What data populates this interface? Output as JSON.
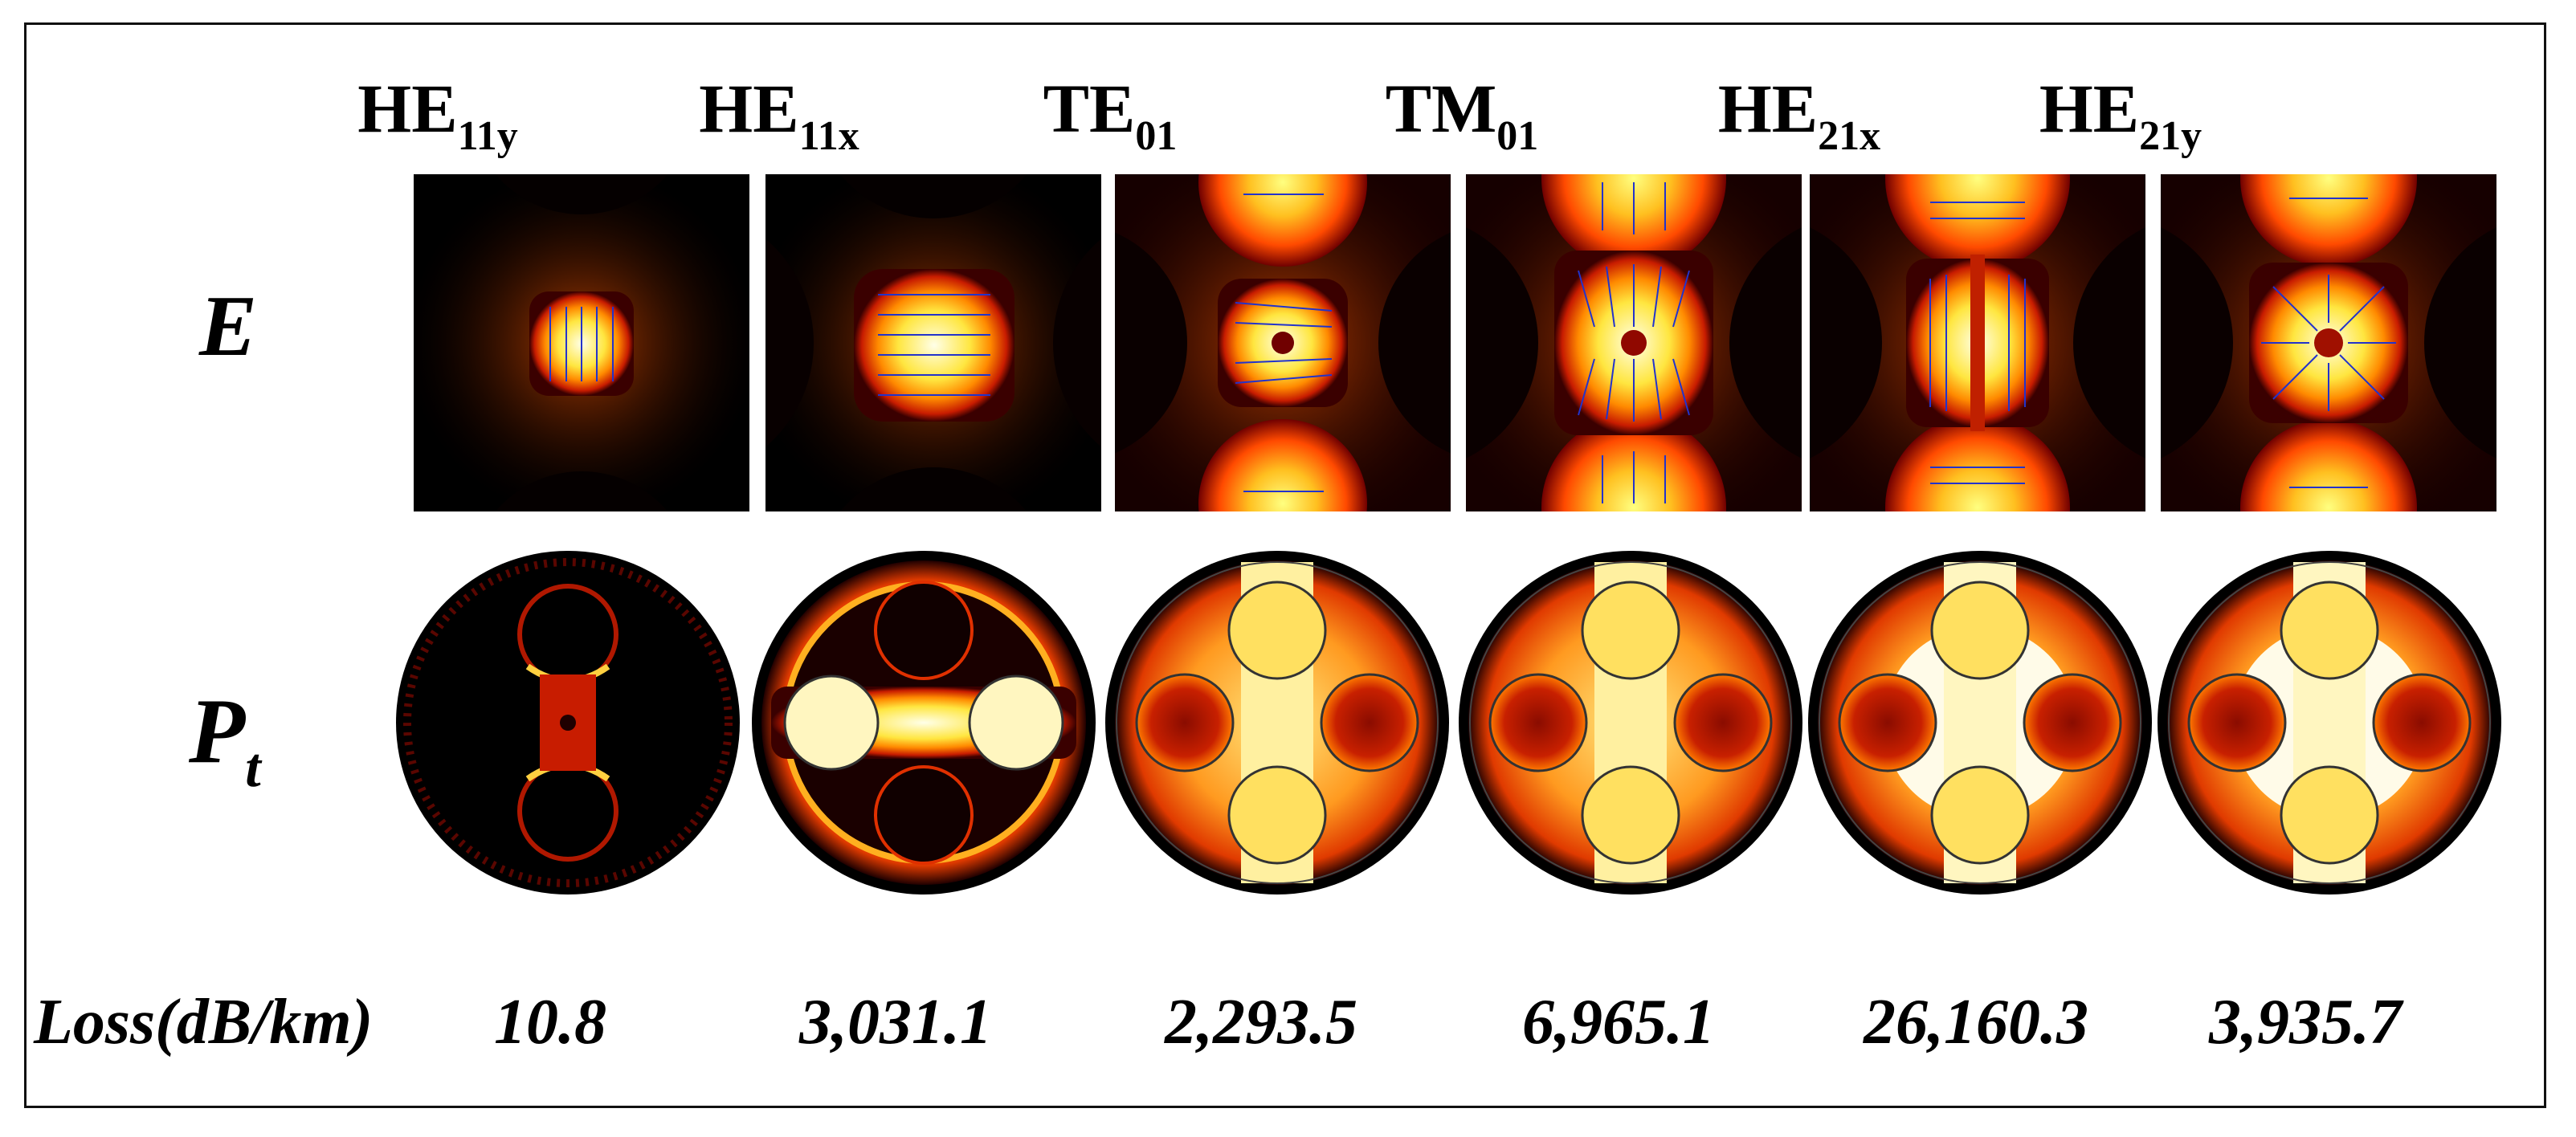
{
  "row_labels": {
    "e": "E",
    "pt_main": "P",
    "pt_sub": "t"
  },
  "loss_label": "Loss(dB/km)",
  "modes": [
    {
      "base": "HE",
      "sub": "11y",
      "loss": "10.8"
    },
    {
      "base": "HE",
      "sub": "11x",
      "loss": "3,031.1"
    },
    {
      "base": "TE",
      "sub": "01",
      "loss": "2,293.5"
    },
    {
      "base": "TM",
      "sub": "01",
      "loss": "6,965.1"
    },
    {
      "base": "HE",
      "sub": "21x",
      "loss": "26,160.3"
    },
    {
      "base": "HE",
      "sub": "21y",
      "loss": "3,935.7"
    }
  ],
  "colors": {
    "hot_white": "#ffffe0",
    "hot_yellow": "#ffd21f",
    "hot_orange": "#ff6a00",
    "hot_red": "#c01800",
    "dark": "#000000",
    "arrow": "#2233cc"
  },
  "icons": {
    "e_field": "field-heatmap-with-arrows",
    "power": "circular-fiber-power-map"
  }
}
